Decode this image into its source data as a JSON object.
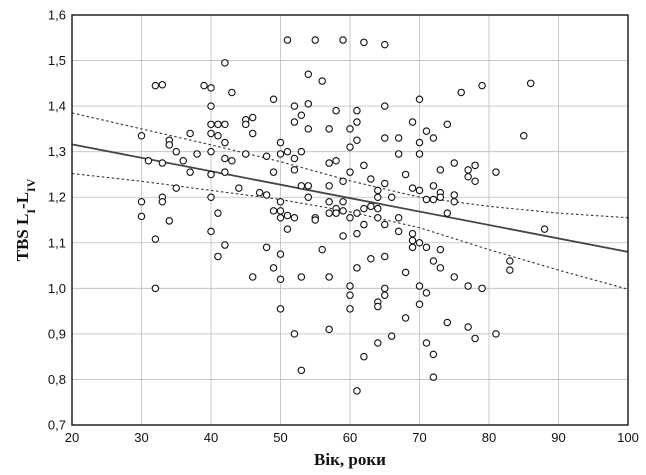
{
  "chart_data": {
    "type": "scatter",
    "title": "",
    "xlabel": "Вік, роки",
    "ylabel": {
      "main": "TBS L",
      "sub1": "I",
      "dash": "-L",
      "sub2": "IV"
    },
    "xlim": [
      20,
      100
    ],
    "ylim": [
      0.7,
      1.6
    ],
    "xticks": [
      20,
      30,
      40,
      50,
      60,
      70,
      80,
      90,
      100
    ],
    "yticks": [
      0.7,
      0.8,
      0.9,
      1.0,
      1.1,
      1.2,
      1.3,
      1.4,
      1.5,
      1.6
    ],
    "ytick_labels": [
      "0,7",
      "0,8",
      "0,9",
      "1,0",
      "1,1",
      "1,2",
      "1,3",
      "1,4",
      "1,5",
      "1,6"
    ],
    "grid": true,
    "regression": {
      "intercept": 1.375,
      "slope": -0.00295
    },
    "ci_upper": [
      [
        20,
        1.385
      ],
      [
        30,
        1.35
      ],
      [
        40,
        1.315
      ],
      [
        50,
        1.278
      ],
      [
        60,
        1.236
      ],
      [
        70,
        1.2
      ],
      [
        80,
        1.18
      ],
      [
        90,
        1.165
      ],
      [
        100,
        1.155
      ]
    ],
    "ci_lower": [
      [
        20,
        1.252
      ],
      [
        30,
        1.235
      ],
      [
        40,
        1.215
      ],
      [
        50,
        1.195
      ],
      [
        60,
        1.168
      ],
      [
        70,
        1.133
      ],
      [
        80,
        1.085
      ],
      [
        90,
        1.04
      ],
      [
        100,
        0.998
      ]
    ],
    "points": [
      [
        30,
        1.335
      ],
      [
        30,
        1.19
      ],
      [
        30,
        1.158
      ],
      [
        31,
        1.28
      ],
      [
        32,
        1.445
      ],
      [
        32,
        1.108
      ],
      [
        32,
        1.0
      ],
      [
        33,
        1.447
      ],
      [
        33,
        1.275
      ],
      [
        33,
        1.2
      ],
      [
        33,
        1.19
      ],
      [
        34,
        1.325
      ],
      [
        34,
        1.315
      ],
      [
        34,
        1.148
      ],
      [
        35,
        1.3
      ],
      [
        35,
        1.22
      ],
      [
        36,
        1.28
      ],
      [
        37,
        1.34
      ],
      [
        37,
        1.255
      ],
      [
        38,
        1.295
      ],
      [
        39,
        1.445
      ],
      [
        40,
        1.44
      ],
      [
        40,
        1.4
      ],
      [
        40,
        1.36
      ],
      [
        40,
        1.34
      ],
      [
        40,
        1.3
      ],
      [
        40,
        1.25
      ],
      [
        40,
        1.2
      ],
      [
        40,
        1.125
      ],
      [
        41,
        1.36
      ],
      [
        41,
        1.335
      ],
      [
        41,
        1.165
      ],
      [
        41,
        1.07
      ],
      [
        42,
        1.495
      ],
      [
        42,
        1.36
      ],
      [
        42,
        1.32
      ],
      [
        42,
        1.285
      ],
      [
        42,
        1.255
      ],
      [
        42,
        1.095
      ],
      [
        43,
        1.43
      ],
      [
        43,
        1.28
      ],
      [
        44,
        1.22
      ],
      [
        45,
        1.37
      ],
      [
        45,
        1.36
      ],
      [
        45,
        1.295
      ],
      [
        46,
        1.375
      ],
      [
        46,
        1.34
      ],
      [
        46,
        1.025
      ],
      [
        47,
        1.21
      ],
      [
        48,
        1.29
      ],
      [
        48,
        1.205
      ],
      [
        48,
        1.09
      ],
      [
        49,
        1.415
      ],
      [
        49,
        1.255
      ],
      [
        49,
        1.17
      ],
      [
        49,
        1.045
      ],
      [
        50,
        1.32
      ],
      [
        50,
        1.295
      ],
      [
        50,
        1.19
      ],
      [
        50,
        1.17
      ],
      [
        50,
        1.155
      ],
      [
        50,
        1.075
      ],
      [
        50,
        1.02
      ],
      [
        50,
        0.955
      ],
      [
        51,
        1.545
      ],
      [
        51,
        1.3
      ],
      [
        51,
        1.16
      ],
      [
        51,
        1.13
      ],
      [
        52,
        1.4
      ],
      [
        52,
        1.365
      ],
      [
        52,
        1.285
      ],
      [
        52,
        1.26
      ],
      [
        52,
        1.155
      ],
      [
        52,
        0.9
      ],
      [
        53,
        1.38
      ],
      [
        53,
        1.3
      ],
      [
        53,
        1.225
      ],
      [
        53,
        1.025
      ],
      [
        53,
        0.82
      ],
      [
        54,
        1.47
      ],
      [
        54,
        1.405
      ],
      [
        54,
        1.35
      ],
      [
        54,
        1.225
      ],
      [
        54,
        1.2
      ],
      [
        55,
        1.545
      ],
      [
        55,
        1.155
      ],
      [
        55,
        1.15
      ],
      [
        56,
        1.455
      ],
      [
        56,
        1.085
      ],
      [
        57,
        1.35
      ],
      [
        57,
        1.275
      ],
      [
        57,
        1.225
      ],
      [
        57,
        1.19
      ],
      [
        57,
        1.165
      ],
      [
        57,
        1.025
      ],
      [
        57,
        0.91
      ],
      [
        58,
        1.39
      ],
      [
        58,
        1.28
      ],
      [
        58,
        1.175
      ],
      [
        58,
        1.165
      ],
      [
        59,
        1.545
      ],
      [
        59,
        1.235
      ],
      [
        59,
        1.19
      ],
      [
        59,
        1.17
      ],
      [
        59,
        1.115
      ],
      [
        60,
        1.35
      ],
      [
        60,
        1.31
      ],
      [
        60,
        1.255
      ],
      [
        60,
        1.155
      ],
      [
        60,
        1.005
      ],
      [
        60,
        0.985
      ],
      [
        60,
        0.955
      ],
      [
        61,
        1.39
      ],
      [
        61,
        1.365
      ],
      [
        61,
        1.325
      ],
      [
        61,
        1.165
      ],
      [
        61,
        1.12
      ],
      [
        61,
        1.045
      ],
      [
        61,
        0.775
      ],
      [
        62,
        1.54
      ],
      [
        62,
        1.27
      ],
      [
        62,
        1.175
      ],
      [
        62,
        1.14
      ],
      [
        62,
        0.85
      ],
      [
        63,
        1.24
      ],
      [
        63,
        1.18
      ],
      [
        63,
        1.065
      ],
      [
        64,
        1.215
      ],
      [
        64,
        1.2
      ],
      [
        64,
        1.175
      ],
      [
        64,
        1.155
      ],
      [
        64,
        0.97
      ],
      [
        64,
        0.96
      ],
      [
        64,
        0.88
      ],
      [
        65,
        1.535
      ],
      [
        65,
        1.4
      ],
      [
        65,
        1.33
      ],
      [
        65,
        1.23
      ],
      [
        65,
        1.14
      ],
      [
        65,
        1.07
      ],
      [
        65,
        1.0
      ],
      [
        65,
        0.985
      ],
      [
        66,
        1.2
      ],
      [
        66,
        0.895
      ],
      [
        67,
        1.33
      ],
      [
        67,
        1.295
      ],
      [
        67,
        1.155
      ],
      [
        67,
        1.125
      ],
      [
        68,
        1.25
      ],
      [
        68,
        1.035
      ],
      [
        68,
        0.935
      ],
      [
        69,
        1.365
      ],
      [
        69,
        1.22
      ],
      [
        69,
        1.12
      ],
      [
        69,
        1.105
      ],
      [
        69,
        1.09
      ],
      [
        70,
        1.415
      ],
      [
        70,
        1.32
      ],
      [
        70,
        1.295
      ],
      [
        70,
        1.215
      ],
      [
        70,
        1.1
      ],
      [
        70,
        1.005
      ],
      [
        70,
        0.965
      ],
      [
        71,
        1.345
      ],
      [
        71,
        1.195
      ],
      [
        71,
        1.09
      ],
      [
        71,
        0.99
      ],
      [
        71,
        0.88
      ],
      [
        72,
        1.33
      ],
      [
        72,
        1.225
      ],
      [
        72,
        1.195
      ],
      [
        72,
        1.06
      ],
      [
        72,
        0.855
      ],
      [
        72,
        0.805
      ],
      [
        73,
        1.26
      ],
      [
        73,
        1.21
      ],
      [
        73,
        1.2
      ],
      [
        73,
        1.085
      ],
      [
        73,
        1.045
      ],
      [
        74,
        1.36
      ],
      [
        74,
        1.165
      ],
      [
        74,
        0.925
      ],
      [
        75,
        1.275
      ],
      [
        75,
        1.205
      ],
      [
        75,
        1.19
      ],
      [
        75,
        1.025
      ],
      [
        76,
        1.43
      ],
      [
        77,
        1.26
      ],
      [
        77,
        1.245
      ],
      [
        77,
        1.005
      ],
      [
        77,
        0.915
      ],
      [
        78,
        1.27
      ],
      [
        78,
        1.235
      ],
      [
        78,
        0.89
      ],
      [
        79,
        1.445
      ],
      [
        79,
        1.0
      ],
      [
        81,
        1.255
      ],
      [
        81,
        0.9
      ],
      [
        83,
        1.06
      ],
      [
        83,
        1.04
      ],
      [
        85,
        1.335
      ],
      [
        86,
        1.45
      ],
      [
        88,
        1.13
      ]
    ]
  }
}
